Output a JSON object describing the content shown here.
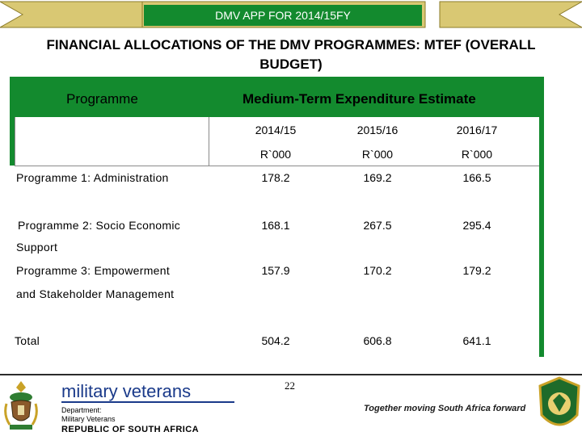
{
  "banner": {
    "title": "DMV APP FOR 2014/15FY"
  },
  "title": "FINANCIAL ALLOCATIONS OF THE DMV PROGRAMMES: MTEF (OVERALL BUDGET)",
  "table": {
    "col_programme": "Programme",
    "col_mtee": "Medium-Term Expenditure Estimate",
    "years": [
      "2014/15",
      "2015/16",
      "2016/17"
    ],
    "units": [
      "R`000",
      "R`000",
      "R`000"
    ],
    "rows": [
      {
        "line1": "Programme 1: Administration",
        "line2": "",
        "values": [
          "178.2",
          "169.2",
          "166.5"
        ]
      },
      {
        "line1": "Programme 2: Socio Economic",
        "line2": "Support",
        "values": [
          "168.1",
          "267.5",
          "295.4"
        ]
      },
      {
        "line1": "Programme 3: Empowerment",
        "line2": "and Stakeholder Management",
        "values": [
          "157.9",
          "170.2",
          "179.2"
        ]
      },
      {
        "line1": "Total",
        "line2": "",
        "values": [
          "504.2",
          "606.8",
          "641.1"
        ]
      }
    ]
  },
  "footer": {
    "brand": "military veterans",
    "dept_line1": "Department:",
    "dept_line2": "Military Veterans",
    "country": "REPUBLIC OF SOUTH AFRICA",
    "page_number": "22",
    "tagline": "Together moving South Africa forward"
  },
  "colors": {
    "accent_green": "#138a2e",
    "banner_gold": "#d9c873",
    "brand_blue": "#1a3a8a"
  }
}
